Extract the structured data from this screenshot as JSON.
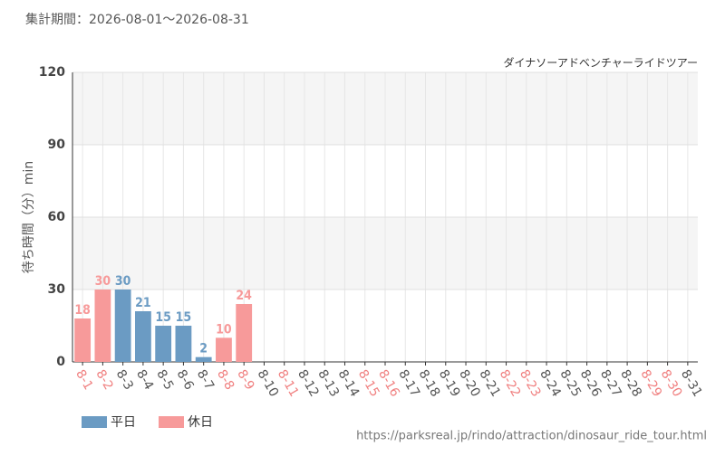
{
  "header": "集計期間：2026-08-01～2026-08-31",
  "footer": "https://parksreal.jp/rindo/attraction/dinosaur_ride_tour.html",
  "chart_data": {
    "type": "bar",
    "subtitle": "ダイナソーアドベンチャーライドツアー",
    "y_label": "待ち時間（分）min",
    "categories": [
      "8-1",
      "8-2",
      "8-3",
      "8-4",
      "8-5",
      "8-6",
      "8-7",
      "8-8",
      "8-9",
      "8-10",
      "8-11",
      "8-12",
      "8-13",
      "8-14",
      "8-15",
      "8-16",
      "8-17",
      "8-18",
      "8-19",
      "8-20",
      "8-21",
      "8-22",
      "8-23",
      "8-24",
      "8-25",
      "8-26",
      "8-27",
      "8-28",
      "8-29",
      "8-30",
      "8-31"
    ],
    "category_label_colors": [
      "#f08080",
      "#f08080",
      "#555555",
      "#555555",
      "#555555",
      "#555555",
      "#555555",
      "#f08080",
      "#f08080",
      "#555555",
      "#f08080",
      "#555555",
      "#555555",
      "#555555",
      "#f08080",
      "#f08080",
      "#555555",
      "#555555",
      "#555555",
      "#555555",
      "#555555",
      "#f08080",
      "#f08080",
      "#555555",
      "#555555",
      "#555555",
      "#555555",
      "#555555",
      "#f08080",
      "#f08080",
      "#555555"
    ],
    "series": [
      {
        "name": "平日",
        "color": "#6b9bc3",
        "values": [
          null,
          null,
          30,
          21,
          15,
          15,
          2,
          null,
          null,
          null,
          null,
          null,
          null,
          null,
          null,
          null,
          null,
          null,
          null,
          null,
          null,
          null,
          null,
          null,
          null,
          null,
          null,
          null,
          null,
          null,
          null
        ]
      },
      {
        "name": "休日",
        "color": "#f79a9a",
        "values": [
          18,
          30,
          null,
          null,
          null,
          null,
          null,
          10,
          24,
          null,
          null,
          null,
          null,
          null,
          null,
          null,
          null,
          null,
          null,
          null,
          null,
          null,
          null,
          null,
          null,
          null,
          null,
          null,
          null,
          null,
          null
        ]
      }
    ],
    "ylim": [
      0,
      120
    ],
    "yticks": [
      0,
      30,
      60,
      90,
      120
    ],
    "grid": true
  }
}
